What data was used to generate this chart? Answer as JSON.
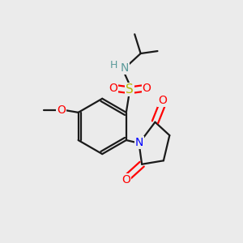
{
  "background_color": "#ebebeb",
  "bond_color": "#1a1a1a",
  "atom_colors": {
    "O": "#ff0000",
    "N_sulfonamide": "#5a9a9a",
    "N_pyrrolidine": "#0000ff",
    "S": "#b8b800",
    "C": "#1a1a1a",
    "H": "#5a9a9a"
  },
  "fig_width": 3.0,
  "fig_height": 3.0,
  "dpi": 100
}
